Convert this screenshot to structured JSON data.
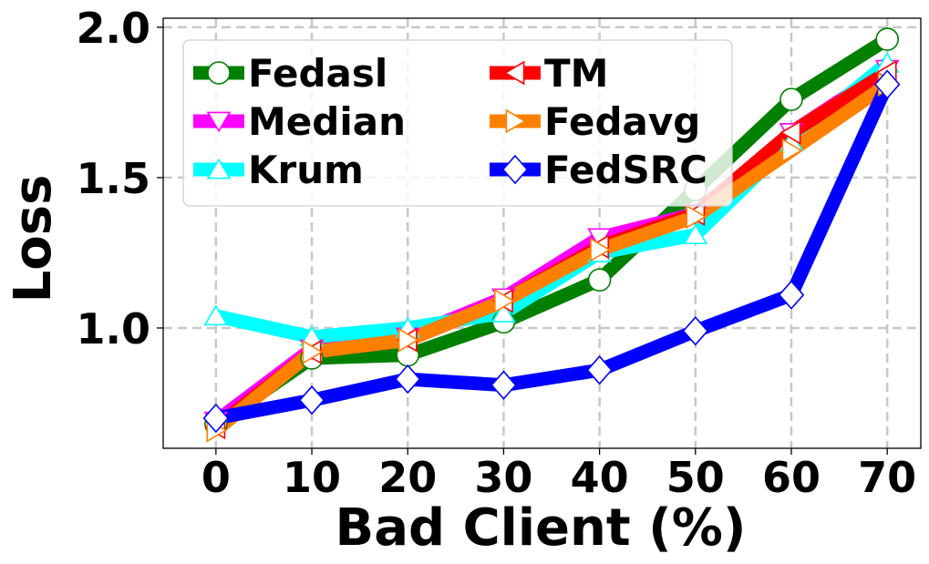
{
  "chart_data": {
    "type": "line",
    "xlabel": "Bad Client (%)",
    "ylabel": "Loss",
    "x": [
      0,
      10,
      20,
      30,
      40,
      50,
      60,
      70
    ],
    "x_tick_labels": [
      "0",
      "10",
      "20",
      "30",
      "40",
      "50",
      "60",
      "70"
    ],
    "y_ticks": [
      1.0,
      1.5,
      2.0
    ],
    "y_tick_labels": [
      "1.0",
      "1.5",
      "2.0"
    ],
    "xlim": [
      -5.5,
      73.5
    ],
    "ylim": [
      0.6,
      2.03
    ],
    "grid": true,
    "legend_position": "upper-left",
    "legend_columns": 2,
    "series": [
      {
        "name": "Fedasl",
        "color": "#008000",
        "marker": "circle",
        "values": [
          0.68,
          0.9,
          0.91,
          1.02,
          1.16,
          1.46,
          1.76,
          1.96
        ]
      },
      {
        "name": "Median",
        "color": "#ff00ff",
        "marker": "triangle-down",
        "values": [
          0.69,
          0.93,
          0.97,
          1.1,
          1.3,
          1.38,
          1.65,
          1.86
        ]
      },
      {
        "name": "Krum",
        "color": "#00ffff",
        "marker": "triangle-up",
        "values": [
          1.04,
          0.97,
          1.0,
          1.05,
          1.25,
          1.31,
          1.62,
          1.88
        ]
      },
      {
        "name": "TM",
        "color": "#ff0000",
        "marker": "triangle-left",
        "values": [
          0.67,
          0.92,
          0.96,
          1.09,
          1.27,
          1.38,
          1.65,
          1.85
        ]
      },
      {
        "name": "Fedavg",
        "color": "#ff8000",
        "marker": "triangle-right",
        "values": [
          0.66,
          0.92,
          0.96,
          1.09,
          1.26,
          1.37,
          1.59,
          1.81
        ]
      },
      {
        "name": "FedSRC",
        "color": "#0000ff",
        "marker": "diamond",
        "values": [
          0.7,
          0.76,
          0.83,
          0.81,
          0.86,
          0.99,
          1.11,
          1.81
        ]
      }
    ]
  }
}
